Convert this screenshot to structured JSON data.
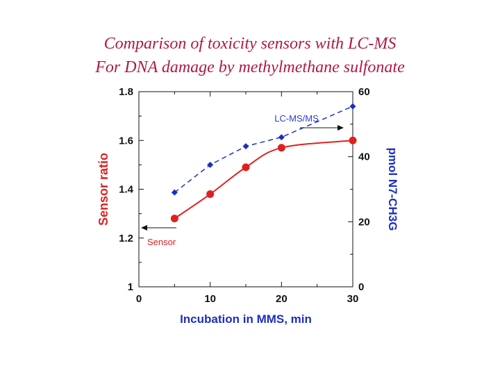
{
  "title_line1": "Comparison of toxicity sensors with LC-MS",
  "title_line2": "For DNA damage by methylmethane sulfonate",
  "chart_data": {
    "type": "line",
    "xlabel": "Incubation in MMS, min",
    "ylabel_left": "Sensor ratio",
    "ylabel_right": "pmol N7-CH3G",
    "xlim": [
      0,
      30
    ],
    "ylim_left": [
      1.0,
      1.8
    ],
    "ylim_right": [
      0,
      60
    ],
    "x_ticks": [
      "0",
      "10",
      "20",
      "30"
    ],
    "y_left_ticks": [
      "1",
      "1.2",
      "1.4",
      "1.6",
      "1.8"
    ],
    "y_right_ticks": [
      "0",
      "20",
      "40",
      "60"
    ],
    "grid": false,
    "series": [
      {
        "name": "Sensor",
        "axis": "left",
        "color": "#e02020",
        "x": [
          5,
          10,
          15,
          20,
          30
        ],
        "y": [
          1.28,
          1.38,
          1.49,
          1.57,
          1.6
        ]
      },
      {
        "name": "LC-MS/MS",
        "axis": "right",
        "color": "#1a2fc0",
        "x": [
          5,
          10,
          15,
          20,
          30
        ],
        "y": [
          29,
          37.5,
          43.2,
          46,
          55.5
        ]
      }
    ]
  }
}
